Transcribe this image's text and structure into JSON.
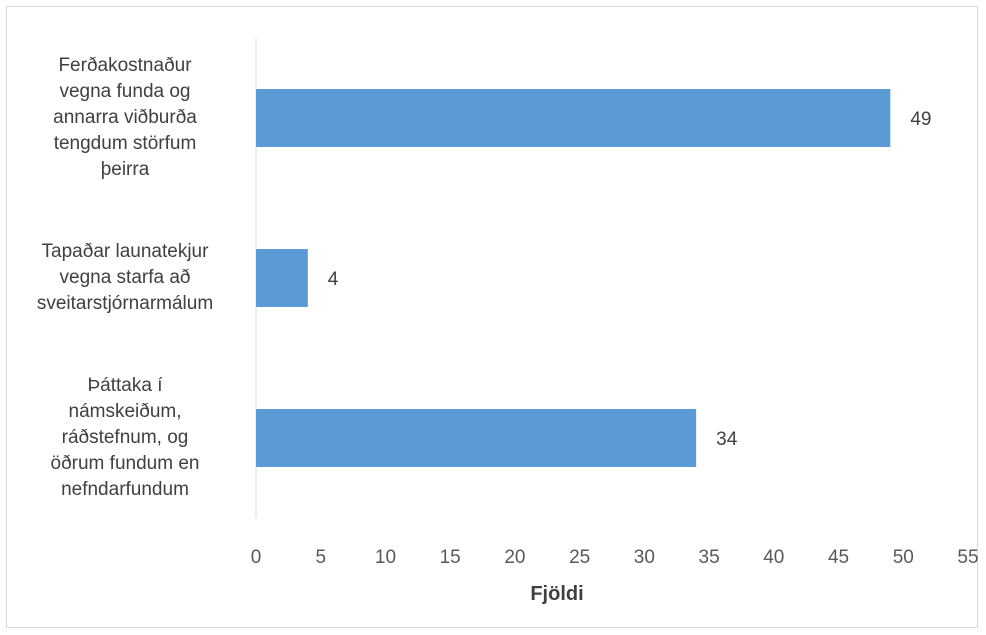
{
  "chart_data": {
    "type": "bar",
    "orientation": "horizontal",
    "categories": [
      "Ferðakostnaður\nvegna funda og\nannarra viðburða\ntengdum störfum\nþeirra",
      "Tapaðar launatekjur\nvegna starfa að\nsveitarstjórnarmálum",
      "Þáttaka í\nnámskeiðum,\nráðstefnum, og\nöðrum fundum en\nnefndarfundum"
    ],
    "values": [
      49,
      4,
      34
    ],
    "data_labels": [
      "49",
      "4",
      "34"
    ],
    "xlabel": "Fjöldi",
    "ylabel": "",
    "xlim": [
      0,
      55
    ],
    "xticks": [
      0,
      5,
      10,
      15,
      20,
      25,
      30,
      35,
      40,
      45,
      50,
      55
    ],
    "grid": false,
    "legend": "none",
    "bar_color": "#5b9bd5",
    "axis_color": "#d9d9d9"
  }
}
